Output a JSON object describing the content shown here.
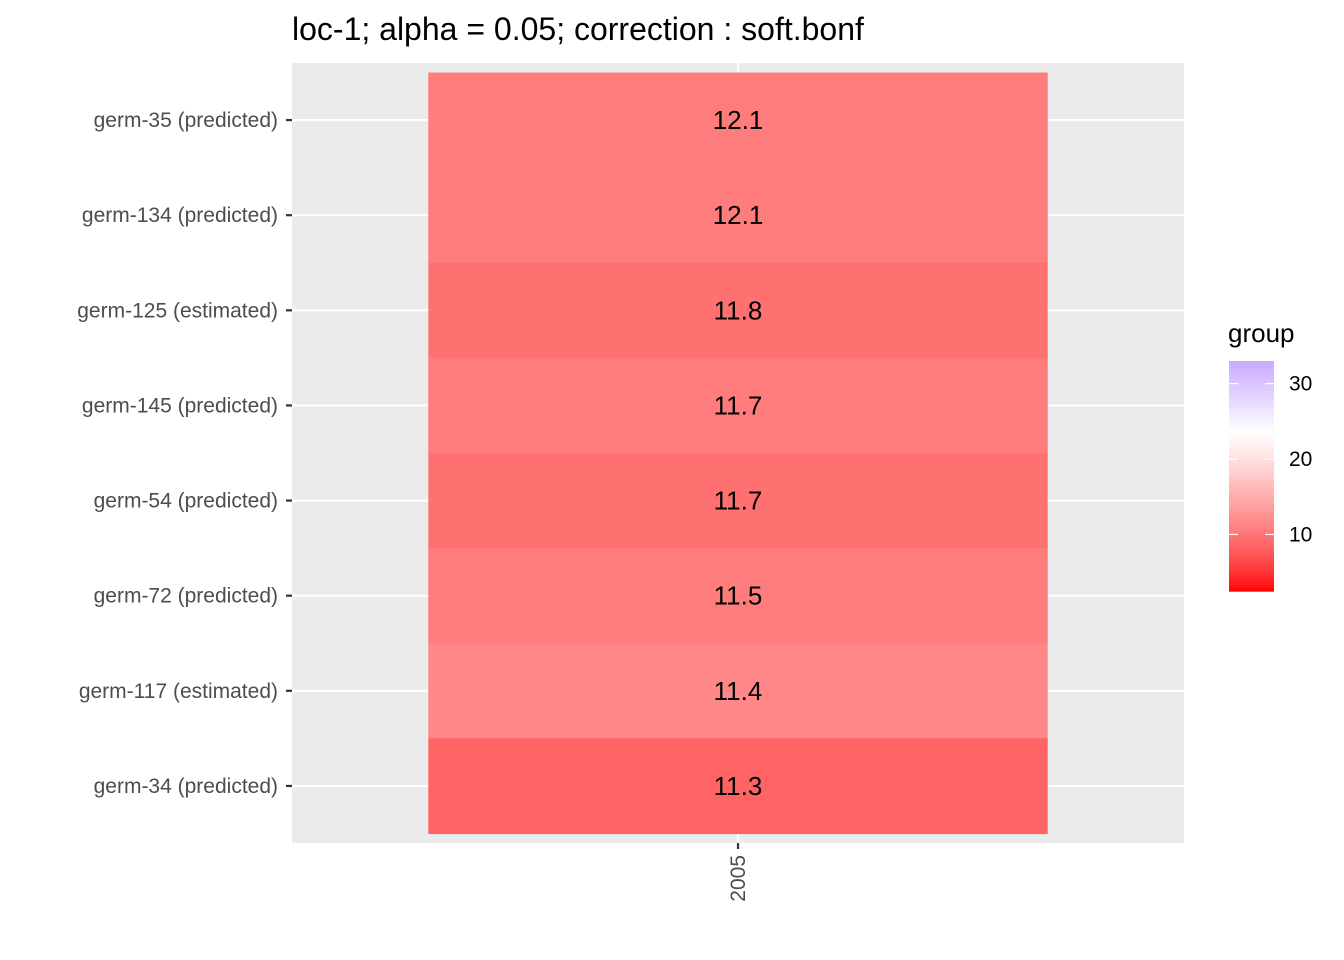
{
  "chart_data": {
    "type": "heatmap",
    "title": "loc-1; alpha = 0.05; correction : soft.bonf",
    "x_categories": [
      "2005"
    ],
    "y_categories": [
      "germ-35 (predicted)",
      "germ-134 (predicted)",
      "germ-125 (estimated)",
      "germ-145 (predicted)",
      "germ-54 (predicted)",
      "germ-72 (predicted)",
      "germ-117 (estimated)",
      "germ-34 (predicted)"
    ],
    "cells": [
      {
        "x": "2005",
        "y": "germ-35 (predicted)",
        "label": "12.1",
        "group": 10.5
      },
      {
        "x": "2005",
        "y": "germ-134 (predicted)",
        "label": "12.1",
        "group": 10.5
      },
      {
        "x": "2005",
        "y": "germ-125 (estimated)",
        "label": "11.8",
        "group": 9.5
      },
      {
        "x": "2005",
        "y": "germ-145 (predicted)",
        "label": "11.7",
        "group": 10.5
      },
      {
        "x": "2005",
        "y": "germ-54 (predicted)",
        "label": "11.7",
        "group": 9.5
      },
      {
        "x": "2005",
        "y": "germ-72 (predicted)",
        "label": "11.5",
        "group": 10.5
      },
      {
        "x": "2005",
        "y": "germ-117 (estimated)",
        "label": "11.4",
        "group": 11.5
      },
      {
        "x": "2005",
        "y": "germ-34 (predicted)",
        "label": "11.3",
        "group": 8.5
      }
    ],
    "legend": {
      "title": "group",
      "position": "right",
      "range": [
        2.5,
        33.0
      ],
      "breaks": [
        10,
        20,
        30
      ],
      "color_low": "#ff0000",
      "color_mid": "#ffffff",
      "color_high": "#c8aaff",
      "midpoint": 23.5
    },
    "panel_background": "#ebebeb",
    "grid_color": "#ffffff",
    "grid": true
  }
}
